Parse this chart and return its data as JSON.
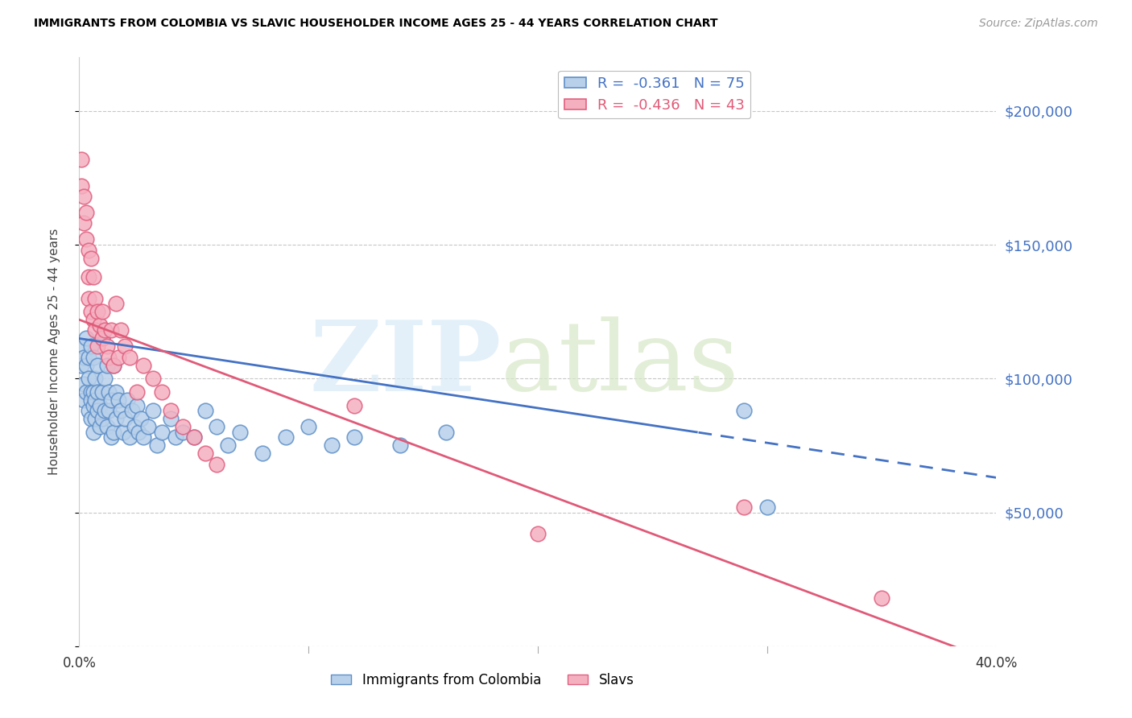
{
  "title": "IMMIGRANTS FROM COLOMBIA VS SLAVIC HOUSEHOLDER INCOME AGES 25 - 44 YEARS CORRELATION CHART",
  "source": "Source: ZipAtlas.com",
  "ylabel": "Householder Income Ages 25 - 44 years",
  "xlim": [
    0.0,
    0.4
  ],
  "ylim": [
    0,
    220000
  ],
  "yticks": [
    0,
    50000,
    100000,
    150000,
    200000
  ],
  "ytick_labels": [
    "",
    "$50,000",
    "$100,000",
    "$150,000",
    "$200,000"
  ],
  "xticks": [
    0.0,
    0.1,
    0.2,
    0.3,
    0.4
  ],
  "xtick_labels": [
    "0.0%",
    "",
    "",
    "",
    "40.0%"
  ],
  "background_color": "#ffffff",
  "grid_color": "#c8c8c8",
  "colombia_face_color": "#b8d0ea",
  "colombia_edge_color": "#6090c8",
  "slavic_face_color": "#f5b0c0",
  "slavic_edge_color": "#e06080",
  "colombia_line_color": "#4472c4",
  "slavic_line_color": "#e05a78",
  "colombia_R": "-0.361",
  "colombia_N": "75",
  "slavic_R": "-0.436",
  "slavic_N": "43",
  "legend_label_colombia": "Immigrants from Colombia",
  "legend_label_slavic": "Slavs",
  "colombia_line_intercept": 115000,
  "colombia_line_slope": -130000,
  "slavic_line_intercept": 122000,
  "slavic_line_slope": -320000,
  "colombia_scatter_x": [
    0.001,
    0.001,
    0.002,
    0.002,
    0.002,
    0.003,
    0.003,
    0.003,
    0.004,
    0.004,
    0.004,
    0.005,
    0.005,
    0.005,
    0.005,
    0.006,
    0.006,
    0.006,
    0.006,
    0.007,
    0.007,
    0.007,
    0.008,
    0.008,
    0.008,
    0.009,
    0.009,
    0.01,
    0.01,
    0.01,
    0.011,
    0.011,
    0.012,
    0.012,
    0.013,
    0.013,
    0.014,
    0.014,
    0.015,
    0.015,
    0.016,
    0.016,
    0.017,
    0.018,
    0.019,
    0.02,
    0.021,
    0.022,
    0.023,
    0.024,
    0.025,
    0.026,
    0.027,
    0.028,
    0.03,
    0.032,
    0.034,
    0.036,
    0.04,
    0.042,
    0.045,
    0.05,
    0.055,
    0.06,
    0.065,
    0.07,
    0.08,
    0.09,
    0.1,
    0.11,
    0.12,
    0.14,
    0.16,
    0.29,
    0.3
  ],
  "colombia_scatter_y": [
    112000,
    105000,
    108000,
    98000,
    92000,
    115000,
    105000,
    95000,
    108000,
    100000,
    88000,
    95000,
    112000,
    85000,
    92000,
    90000,
    108000,
    95000,
    80000,
    100000,
    85000,
    92000,
    105000,
    88000,
    95000,
    90000,
    82000,
    115000,
    95000,
    85000,
    100000,
    88000,
    105000,
    82000,
    95000,
    88000,
    92000,
    78000,
    105000,
    80000,
    95000,
    85000,
    92000,
    88000,
    80000,
    85000,
    92000,
    78000,
    88000,
    82000,
    90000,
    80000,
    85000,
    78000,
    82000,
    88000,
    75000,
    80000,
    85000,
    78000,
    80000,
    78000,
    88000,
    82000,
    75000,
    80000,
    72000,
    78000,
    82000,
    75000,
    78000,
    75000,
    80000,
    88000,
    52000
  ],
  "slavic_scatter_x": [
    0.001,
    0.001,
    0.002,
    0.002,
    0.003,
    0.003,
    0.004,
    0.004,
    0.004,
    0.005,
    0.005,
    0.006,
    0.006,
    0.007,
    0.007,
    0.008,
    0.008,
    0.009,
    0.01,
    0.01,
    0.011,
    0.012,
    0.013,
    0.014,
    0.015,
    0.016,
    0.017,
    0.018,
    0.02,
    0.022,
    0.025,
    0.028,
    0.032,
    0.036,
    0.04,
    0.045,
    0.05,
    0.055,
    0.06,
    0.12,
    0.2,
    0.29,
    0.35
  ],
  "slavic_scatter_y": [
    182000,
    172000,
    168000,
    158000,
    162000,
    152000,
    148000,
    138000,
    130000,
    145000,
    125000,
    138000,
    122000,
    130000,
    118000,
    125000,
    112000,
    120000,
    125000,
    115000,
    118000,
    112000,
    108000,
    118000,
    105000,
    128000,
    108000,
    118000,
    112000,
    108000,
    95000,
    105000,
    100000,
    95000,
    88000,
    82000,
    78000,
    72000,
    68000,
    90000,
    42000,
    52000,
    18000
  ]
}
